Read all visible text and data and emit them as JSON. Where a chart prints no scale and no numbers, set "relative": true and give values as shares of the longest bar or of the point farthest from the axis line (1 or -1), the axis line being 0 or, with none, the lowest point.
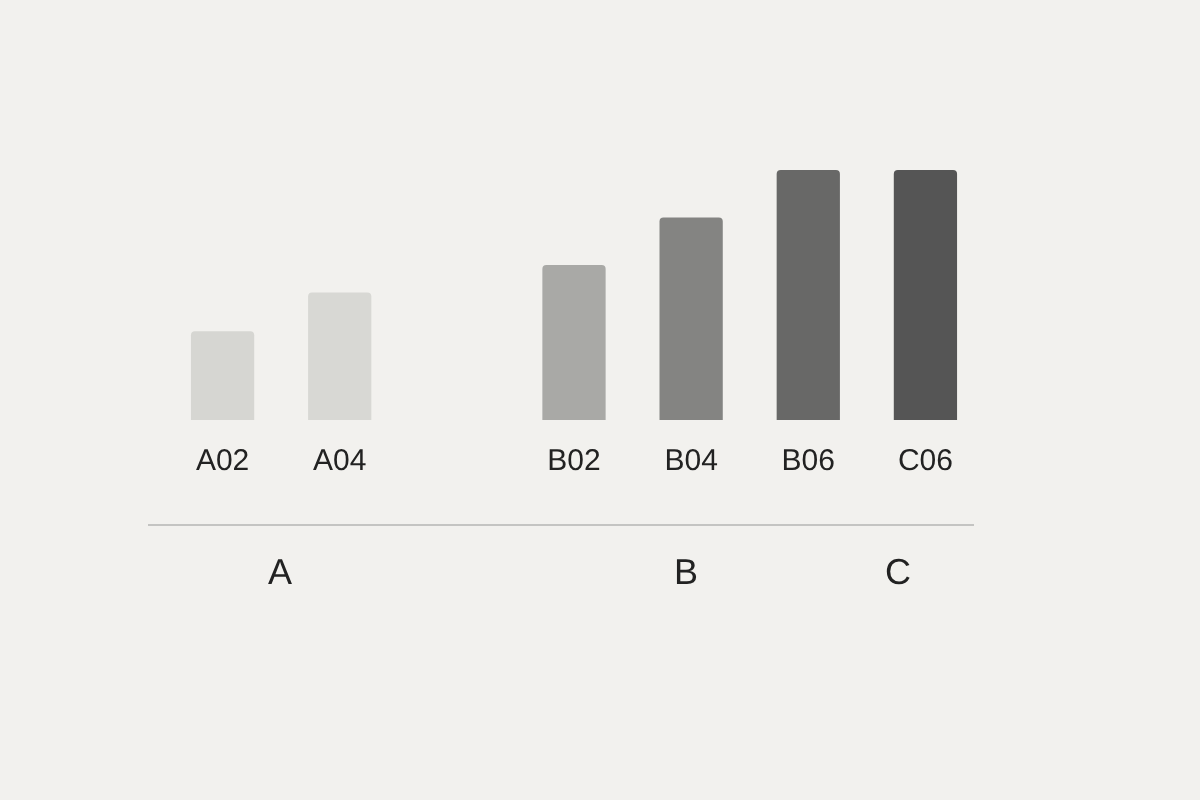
{
  "chart_data": {
    "type": "bar",
    "relative": true,
    "categories": [
      "A02",
      "A04",
      null,
      "B02",
      "B04",
      "B06",
      "C06"
    ],
    "values": [
      0.355,
      0.51,
      null,
      0.62,
      0.81,
      1,
      1
    ],
    "colors": [
      "#d6d6d2",
      "#d8d8d4",
      "#cccccc",
      "#a9a9a6",
      "#848482",
      "#686867",
      "#555555"
    ],
    "annotations": [
      "A",
      "B",
      "C"
    ],
    "grid": false,
    "legend": false
  }
}
